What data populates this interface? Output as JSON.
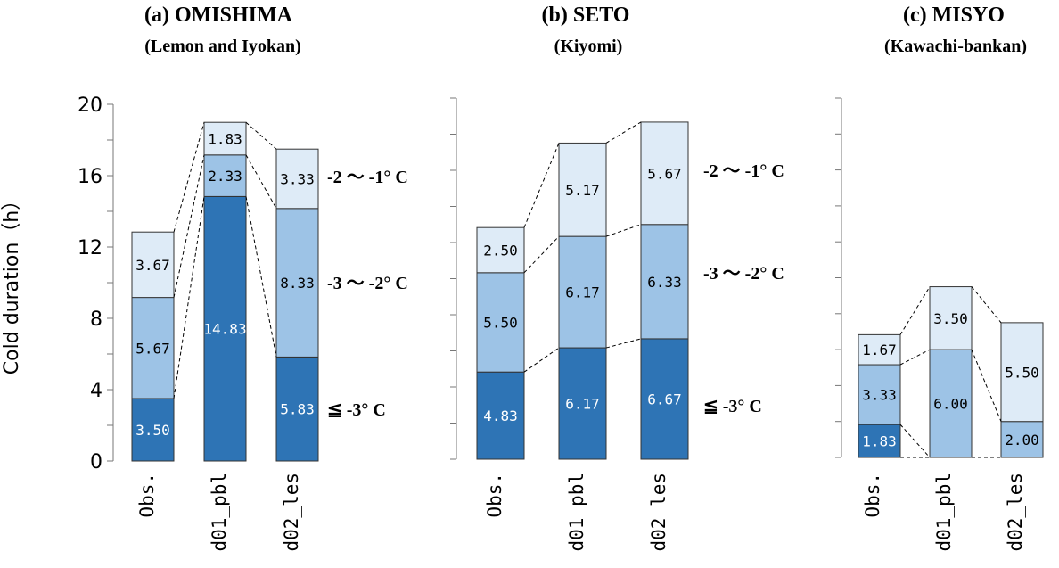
{
  "chart_data": {
    "type": "bar",
    "stacked": true,
    "ylabel": "Cold duration（h）",
    "ylim": [
      0,
      20
    ],
    "yticks": [
      "0",
      "4",
      "8",
      "12",
      "16",
      "20"
    ],
    "categories": [
      "Obs.",
      "d01_pbl",
      "d02_les"
    ],
    "colors": {
      "le_-3": "#2e74b5",
      "-3_-2": "#9dc3e6",
      "-2_-1": "#deebf7"
    },
    "panels": [
      {
        "id": "a",
        "title": "(a)  OMISHIMA",
        "subtitle": "(Lemon and Iyokan)",
        "show_tick_labels": true,
        "series": [
          {
            "name": "≦ -3° C",
            "key": "le_-3",
            "values": [
              3.5,
              14.83,
              5.83
            ],
            "labels": [
              "3.50",
              "14.83",
              "5.83"
            ]
          },
          {
            "name": "-3 〜 -2° C",
            "key": "-3_-2",
            "values": [
              5.67,
              2.33,
              8.33
            ],
            "labels": [
              "5.67",
              "2.33",
              "8.33"
            ]
          },
          {
            "name": "-2 〜 -1° C",
            "key": "-2_-1",
            "values": [
              3.67,
              1.83,
              3.33
            ],
            "labels": [
              "3.67",
              "1.83",
              "3.33"
            ]
          }
        ]
      },
      {
        "id": "b",
        "title": "(b)  SETO",
        "subtitle": "(Kiyomi)",
        "show_tick_labels": false,
        "series": [
          {
            "name": "≦ -3° C",
            "key": "le_-3",
            "values": [
              4.83,
              6.17,
              6.67
            ],
            "labels": [
              "4.83",
              "6.17",
              "6.67"
            ]
          },
          {
            "name": "-3 〜 -2° C",
            "key": "-3_-2",
            "values": [
              5.5,
              6.17,
              6.33
            ],
            "labels": [
              "5.50",
              "6.17",
              "6.33"
            ]
          },
          {
            "name": "-2 〜 -1° C",
            "key": "-2_-1",
            "values": [
              2.5,
              5.17,
              5.67
            ],
            "labels": [
              "2.50",
              "5.17",
              "5.67"
            ]
          }
        ]
      },
      {
        "id": "c",
        "title": "(c)  MISYO",
        "subtitle": "(Kawachi-bankan)",
        "show_tick_labels": false,
        "series": [
          {
            "name": "≦ -3° C",
            "key": "le_-3",
            "values": [
              1.83,
              0,
              0
            ],
            "labels": [
              "1.83",
              "",
              ""
            ]
          },
          {
            "name": "-3 〜 -2° C",
            "key": "-3_-2",
            "values": [
              3.33,
              6.0,
              2.0
            ],
            "labels": [
              "3.33",
              "6.00",
              "2.00"
            ]
          },
          {
            "name": "-2 〜 -1° C",
            "key": "-2_-1",
            "values": [
              1.67,
              3.5,
              5.5
            ],
            "labels": [
              "1.67",
              "3.50",
              "5.50"
            ]
          }
        ]
      }
    ],
    "band_labels": {
      "a": [
        "-2 〜 -1° C",
        "-3 〜 -2° C",
        "≦ -3° C"
      ],
      "b": [
        "-2 〜 -1° C",
        "-3 〜 -2° C",
        "≦ -3° C"
      ]
    }
  }
}
